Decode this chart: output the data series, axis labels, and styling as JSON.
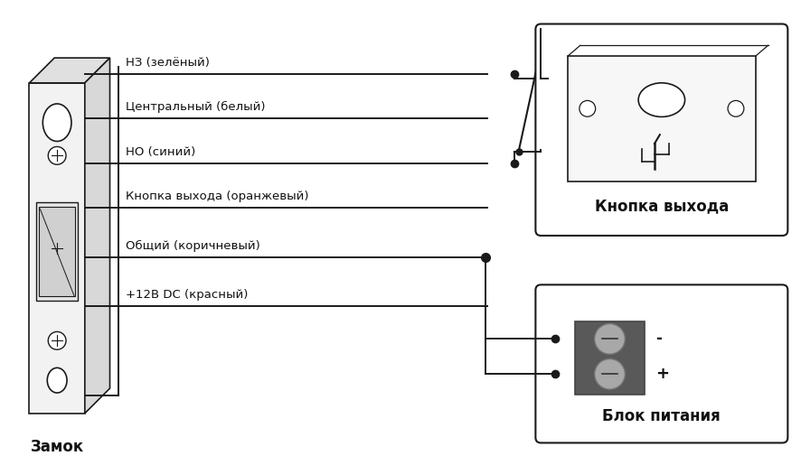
{
  "bg_color": "#ffffff",
  "line_color": "#1a1a1a",
  "wire_color": "#1a1a1a",
  "wire_lw": 1.4,
  "labels": [
    "НЗ (зелёный)",
    "Центральный (белый)",
    "НО (синий)",
    "Кнопка выхода (оранжевый)",
    "Общий (коричневый)",
    "+12В DC (красный)"
  ],
  "lock_label": "Замок",
  "button_label": "Кнопка выхода",
  "psu_label": "Блок питания",
  "label_fontsize": 9.5,
  "title_fontsize": 12
}
